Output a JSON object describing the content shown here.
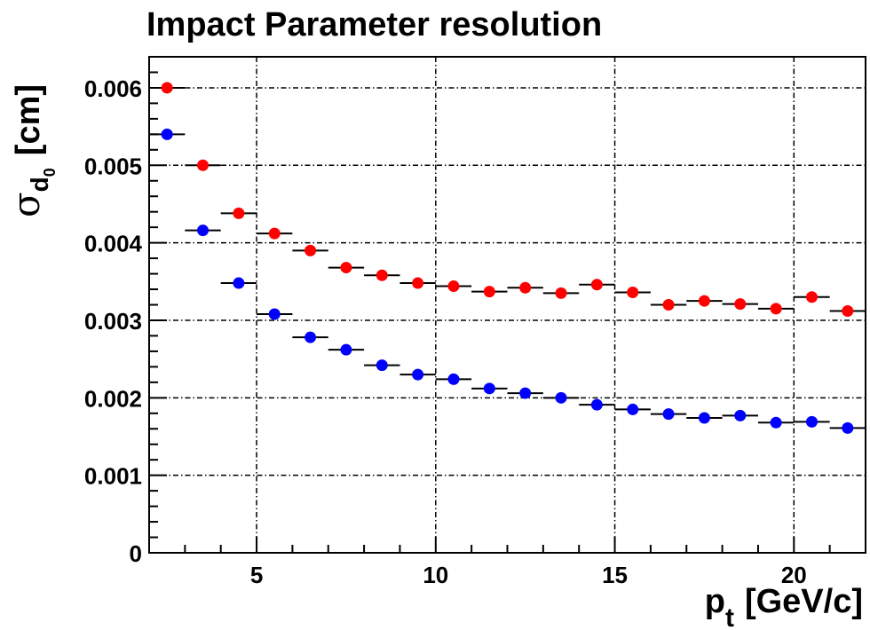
{
  "chart_data": {
    "type": "scatter",
    "title": "Impact Parameter resolution",
    "xlabel": {
      "main": "p",
      "sub": "t",
      "unit": "[GeV/c]"
    },
    "ylabel": {
      "symbol": "σ",
      "sub": "d",
      "subsub": "0",
      "unit": "[cm]"
    },
    "xlim": [
      2,
      22
    ],
    "ylim": [
      0,
      0.0064
    ],
    "x_ticks": [
      5,
      10,
      15,
      20
    ],
    "y_ticks": [
      0,
      0.001,
      0.002,
      0.003,
      0.004,
      0.005,
      0.006
    ],
    "y_tick_labels": [
      "0",
      "0.001",
      "0.002",
      "0.003",
      "0.004",
      "0.005",
      "0.006"
    ],
    "grid": true,
    "x_bin_half_width": 0.5,
    "series": [
      {
        "color": "#ff0000",
        "x": [
          2.5,
          3.5,
          4.5,
          5.5,
          6.5,
          7.5,
          8.5,
          9.5,
          10.5,
          11.5,
          12.5,
          13.5,
          14.5,
          15.5,
          16.5,
          17.5,
          18.5,
          19.5,
          20.5,
          21.5
        ],
        "y": [
          0.006,
          0.005,
          0.00438,
          0.00412,
          0.0039,
          0.00368,
          0.00358,
          0.00348,
          0.00344,
          0.00337,
          0.00342,
          0.00335,
          0.00346,
          0.00336,
          0.0032,
          0.00325,
          0.00321,
          0.00315,
          0.0033,
          0.00312
        ]
      },
      {
        "color": "#0000ff",
        "x": [
          2.5,
          3.5,
          4.5,
          5.5,
          6.5,
          7.5,
          8.5,
          9.5,
          10.5,
          11.5,
          12.5,
          13.5,
          14.5,
          15.5,
          16.5,
          17.5,
          18.5,
          19.5,
          20.5,
          21.5
        ],
        "y": [
          0.0054,
          0.00416,
          0.00348,
          0.00308,
          0.00278,
          0.00262,
          0.00242,
          0.0023,
          0.00224,
          0.00212,
          0.00206,
          0.002,
          0.00191,
          0.00185,
          0.00179,
          0.00174,
          0.00177,
          0.00168,
          0.00169,
          0.00161
        ]
      }
    ]
  }
}
